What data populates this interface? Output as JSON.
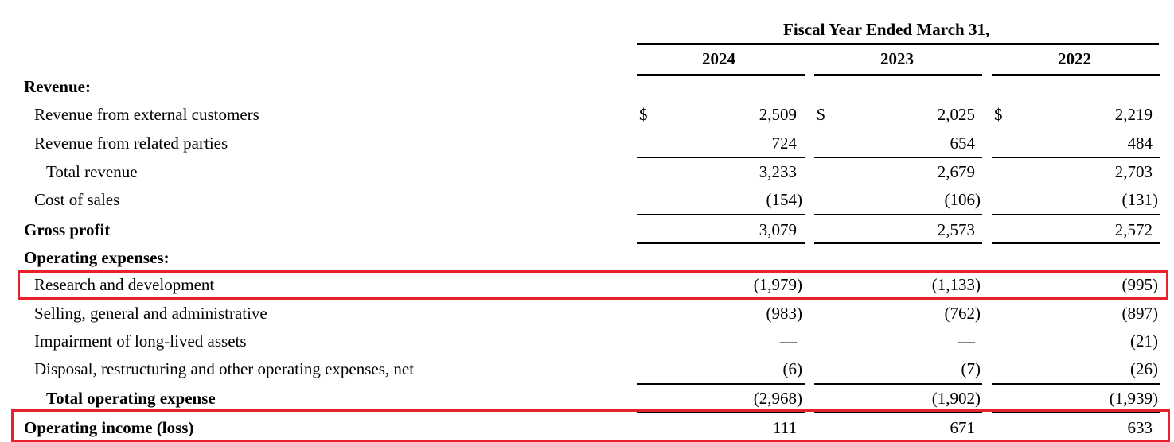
{
  "header": {
    "title": "Fiscal Year Ended March 31,",
    "years": [
      "2024",
      "2023",
      "2022"
    ]
  },
  "currency_symbol": "$",
  "rows": [
    {
      "label": "Revenue:",
      "values": [
        "",
        "",
        ""
      ]
    },
    {
      "label": "Revenue from external customers",
      "values": [
        "2,509",
        "2,025",
        "2,219"
      ]
    },
    {
      "label": "Revenue from related parties",
      "values": [
        "724",
        "654",
        "484"
      ]
    },
    {
      "label": "Total revenue",
      "values": [
        "3,233",
        "2,679",
        "2,703"
      ]
    },
    {
      "label": "Cost of sales",
      "values": [
        "(154)",
        "(106)",
        "(131)"
      ]
    },
    {
      "label": "Gross profit",
      "values": [
        "3,079",
        "2,573",
        "2,572"
      ]
    },
    {
      "label": "Operating expenses:",
      "values": [
        "",
        "",
        ""
      ]
    },
    {
      "label": "Research and development",
      "values": [
        "(1,979)",
        "(1,133)",
        "(995)"
      ]
    },
    {
      "label": "Selling, general and administrative",
      "values": [
        "(983)",
        "(762)",
        "(897)"
      ]
    },
    {
      "label": "Impairment of long-lived assets",
      "values": [
        "—",
        "—",
        "(21)"
      ]
    },
    {
      "label": "Disposal, restructuring and other operating expenses, net",
      "values": [
        "(6)",
        "(7)",
        "(26)"
      ]
    },
    {
      "label": "Total operating expense",
      "values": [
        "(2,968)",
        "(1,902)",
        "(1,939)"
      ]
    },
    {
      "label": "Operating income (loss)",
      "values": [
        "111",
        "671",
        "633"
      ]
    }
  ],
  "highlight_color": "#e8212b"
}
